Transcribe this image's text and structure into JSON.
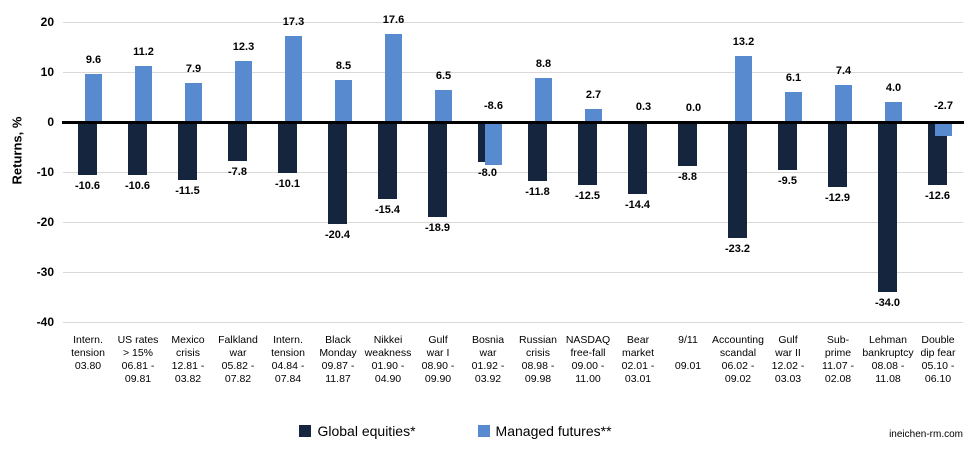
{
  "chart_data": {
    "type": "bar",
    "title": "",
    "ylabel": "Returns, %",
    "ylim": [
      -40,
      20
    ],
    "yticks": [
      20,
      10,
      0,
      -10,
      -20,
      -30,
      -40
    ],
    "grid": "horizontal",
    "gridline_color": "#D9D9D9",
    "axis_line_color": "#000000",
    "legend_position": "bottom-center",
    "categories": [
      [
        "Intern.",
        "tension",
        "03.80"
      ],
      [
        "US rates",
        "> 15%",
        "06.81 -",
        "09.81"
      ],
      [
        "Mexico",
        "crisis",
        "12.81 -",
        "03.82"
      ],
      [
        "Falkland",
        "war",
        "05.82 -",
        "07.82"
      ],
      [
        "Intern.",
        "tension",
        "04.84 -",
        "07.84"
      ],
      [
        "Black",
        "Monday",
        "09.87 -",
        "11.87"
      ],
      [
        "Nikkei",
        "weakness",
        "01.90 -",
        "04.90"
      ],
      [
        "Gulf",
        "war I",
        "08.90 -",
        "09.90"
      ],
      [
        "Bosnia",
        "war",
        "01.92 -",
        "03.92"
      ],
      [
        "Russian",
        "crisis",
        "08.98 -",
        "09.98"
      ],
      [
        "NASDAQ",
        "free-fall",
        "09.00 -",
        "11.00"
      ],
      [
        "Bear",
        "market",
        "02.01 -",
        "03.01"
      ],
      [
        "9/11",
        "",
        "09.01"
      ],
      [
        "Accounting",
        "scandal",
        "06.02 -",
        "09.02"
      ],
      [
        "Gulf",
        "war II",
        "12.02 -",
        "03.03"
      ],
      [
        "Sub-",
        "prime",
        "11.07 -",
        "02.08"
      ],
      [
        "Lehman",
        "bankruptcy",
        "08.08 -",
        "11.08"
      ],
      [
        "Double",
        "dip fear",
        "05.10 -",
        "06.10"
      ]
    ],
    "series": [
      {
        "name": "Global equities*",
        "color": "#15253E",
        "values": [
          -10.6,
          -10.6,
          -11.5,
          -7.8,
          -10.1,
          -20.4,
          -15.4,
          -18.9,
          -8.0,
          -11.8,
          -12.5,
          -14.4,
          -8.8,
          -23.2,
          -9.5,
          -12.9,
          -34.0,
          -12.6
        ]
      },
      {
        "name": "Managed futures**",
        "color": "#578ACE",
        "values": [
          9.6,
          11.2,
          7.9,
          12.3,
          17.3,
          8.5,
          17.6,
          6.5,
          -8.6,
          8.8,
          2.7,
          0.3,
          0.0,
          13.2,
          6.1,
          7.4,
          4.0,
          -2.7
        ]
      }
    ]
  },
  "footer": {
    "source_text": "ineichen-rm.com"
  }
}
